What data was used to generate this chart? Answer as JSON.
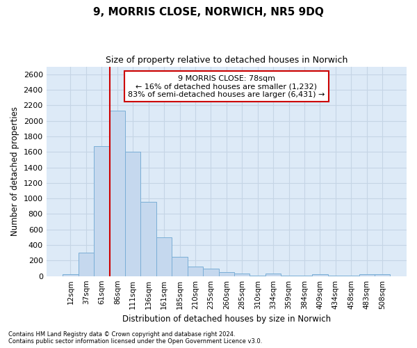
{
  "title1": "9, MORRIS CLOSE, NORWICH, NR5 9DQ",
  "title2": "Size of property relative to detached houses in Norwich",
  "xlabel": "Distribution of detached houses by size in Norwich",
  "ylabel": "Number of detached properties",
  "footnote1": "Contains HM Land Registry data © Crown copyright and database right 2024.",
  "footnote2": "Contains public sector information licensed under the Open Government Licence v3.0.",
  "annotation_line1": "9 MORRIS CLOSE: 78sqm",
  "annotation_line2": "← 16% of detached houses are smaller (1,232)",
  "annotation_line3": "83% of semi-detached houses are larger (6,431) →",
  "bar_labels": [
    "12sqm",
    "37sqm",
    "61sqm",
    "86sqm",
    "111sqm",
    "136sqm",
    "161sqm",
    "185sqm",
    "210sqm",
    "235sqm",
    "260sqm",
    "285sqm",
    "310sqm",
    "334sqm",
    "359sqm",
    "384sqm",
    "409sqm",
    "434sqm",
    "458sqm",
    "483sqm",
    "508sqm"
  ],
  "bar_values": [
    25,
    300,
    1670,
    2130,
    1600,
    960,
    500,
    250,
    120,
    100,
    50,
    30,
    5,
    30,
    5,
    5,
    20,
    5,
    5,
    20,
    25
  ],
  "bar_color": "#c5d8ee",
  "bar_edgecolor": "#7aaed6",
  "vline_color": "#cc0000",
  "annotation_box_facecolor": "#ffffff",
  "annotation_box_edgecolor": "#cc0000",
  "ylim": [
    0,
    2700
  ],
  "yticks": [
    0,
    200,
    400,
    600,
    800,
    1000,
    1200,
    1400,
    1600,
    1800,
    2000,
    2200,
    2400,
    2600
  ],
  "grid_color": "#c5d5e5",
  "plot_background": "#ddeaf7",
  "fig_background": "#ffffff"
}
